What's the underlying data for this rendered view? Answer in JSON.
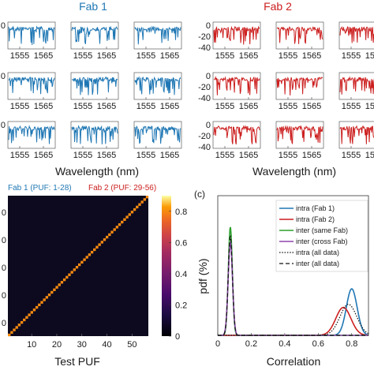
{
  "chart_data": [
    {
      "type": "line",
      "panel": "Fab 1",
      "title": "Fab 1",
      "color": "#1f77b4",
      "xlabel": "Wavelength (nm)",
      "x_ticks": [
        "1555",
        "1565"
      ],
      "y_ticks": [
        "0",
        "0",
        "0"
      ],
      "grid_rows": 3,
      "grid_cols": 3,
      "ylim": [
        -40,
        0
      ]
    },
    {
      "type": "line",
      "panel": "Fab 2",
      "title": "Fab 2",
      "color": "#cc1f1f",
      "xlabel": "Wavelength (nm)",
      "x_ticks": [
        "1555",
        "1565"
      ],
      "y_ticks": [
        "0",
        "-20",
        "-40"
      ],
      "grid_rows": 3,
      "grid_cols": 3,
      "ylim": [
        -40,
        0
      ]
    },
    {
      "type": "heatmap",
      "annotation_fab1": "Fab 1 (PUF: 1-28)",
      "annotation_fab2": "Fab 2 (PUF: 29-56)",
      "xlabel": "Test PUF",
      "x_ticks": [
        "10",
        "20",
        "30",
        "40",
        "50"
      ],
      "y_ticks": [
        "0",
        "0",
        "0",
        "0",
        "0"
      ],
      "n": 56,
      "diagonal_value": 0.8,
      "off_diagonal_value": 0.05,
      "colorbar_ticks": [
        "0.8",
        "0.6",
        "0.4",
        "0.2",
        "0"
      ],
      "colorbar_range": [
        0,
        0.9
      ]
    },
    {
      "type": "line",
      "panel_label": "(c)",
      "xlabel": "Correlation",
      "ylabel": "pdf (%)",
      "x_ticks": [
        "0",
        "0.2",
        "0.4",
        "0.6",
        "0.8"
      ],
      "xlim": [
        0,
        0.9
      ],
      "ylim": [
        0,
        45
      ],
      "legend_position": "top-right",
      "series": [
        {
          "name": "intra (Fab 1)",
          "color": "#1f77b4",
          "style": "solid",
          "mean": 0.8,
          "sd": 0.032,
          "peak": 15
        },
        {
          "name": "intra (Fab 2)",
          "color": "#cc1f1f",
          "style": "solid",
          "mean": 0.75,
          "sd": 0.045,
          "peak": 9
        },
        {
          "name": "inter (same Fab)",
          "color": "#2ca02c",
          "style": "solid",
          "mean": 0.075,
          "sd": 0.012,
          "peak": 35
        },
        {
          "name": "inter (cross Fab)",
          "color": "#8e44ad",
          "style": "solid",
          "mean": 0.075,
          "sd": 0.013,
          "peak": 30
        },
        {
          "name": "intra (all data)",
          "color": "#111111",
          "style": "dotted",
          "mean": 0.78,
          "sd": 0.05,
          "peak": 10
        },
        {
          "name": "inter (all data)",
          "color": "#111111",
          "style": "dashed",
          "mean": 0.075,
          "sd": 0.0125,
          "peak": 32
        }
      ]
    }
  ]
}
